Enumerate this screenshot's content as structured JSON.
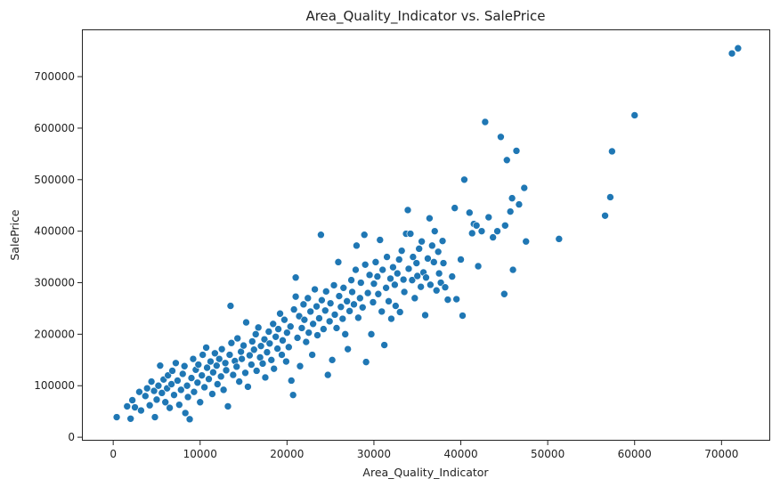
{
  "chart_data": {
    "type": "scatter",
    "title": "Area_Quality_Indicator vs. SalePrice",
    "xlabel": "Area_Quality_Indicator",
    "ylabel": "SalePrice",
    "xlim": [
      -3500,
      75500
    ],
    "ylim": [
      -5000,
      790000
    ],
    "xticks": [
      0,
      10000,
      20000,
      30000,
      40000,
      50000,
      60000,
      70000
    ],
    "yticks": [
      0,
      100000,
      200000,
      300000,
      400000,
      500000,
      600000,
      700000
    ],
    "grid": false,
    "legend": "none",
    "marker_color": "#1f77b4",
    "series": [
      {
        "points": [
          [
            400,
            39000
          ],
          [
            1600,
            60000
          ],
          [
            2000,
            36000
          ],
          [
            2200,
            72000
          ],
          [
            2500,
            58000
          ],
          [
            3000,
            88000
          ],
          [
            3200,
            52000
          ],
          [
            3700,
            80000
          ],
          [
            3900,
            95000
          ],
          [
            4200,
            62000
          ],
          [
            4400,
            108000
          ],
          [
            4700,
            90000
          ],
          [
            4800,
            39000
          ],
          [
            5000,
            73000
          ],
          [
            5200,
            100000
          ],
          [
            5400,
            139000
          ],
          [
            5600,
            86000
          ],
          [
            5800,
            112000
          ],
          [
            6000,
            68000
          ],
          [
            6200,
            95000
          ],
          [
            6300,
            120000
          ],
          [
            6500,
            57000
          ],
          [
            6700,
            103000
          ],
          [
            6800,
            129000
          ],
          [
            7000,
            82000
          ],
          [
            7200,
            144000
          ],
          [
            7400,
            110000
          ],
          [
            7600,
            63000
          ],
          [
            7800,
            92000
          ],
          [
            8000,
            123000
          ],
          [
            8200,
            138000
          ],
          [
            8300,
            47000
          ],
          [
            8500,
            100000
          ],
          [
            8600,
            78000
          ],
          [
            8800,
            35000
          ],
          [
            9000,
            115000
          ],
          [
            9200,
            152000
          ],
          [
            9300,
            88000
          ],
          [
            9500,
            131000
          ],
          [
            9700,
            106000
          ],
          [
            9800,
            141000
          ],
          [
            10000,
            68000
          ],
          [
            10200,
            120000
          ],
          [
            10300,
            160000
          ],
          [
            10500,
            97000
          ],
          [
            10700,
            174000
          ],
          [
            10800,
            135000
          ],
          [
            11000,
            113000
          ],
          [
            11200,
            147000
          ],
          [
            11400,
            84000
          ],
          [
            11500,
            126000
          ],
          [
            11700,
            163000
          ],
          [
            11900,
            139000
          ],
          [
            12000,
            103000
          ],
          [
            12200,
            152000
          ],
          [
            12400,
            118000
          ],
          [
            12500,
            171000
          ],
          [
            12700,
            92000
          ],
          [
            12900,
            144000
          ],
          [
            13000,
            130000
          ],
          [
            13200,
            60000
          ],
          [
            13400,
            160000
          ],
          [
            13500,
            255000
          ],
          [
            13600,
            183000
          ],
          [
            13800,
            121000
          ],
          [
            14000,
            148000
          ],
          [
            14200,
            137000
          ],
          [
            14300,
            192000
          ],
          [
            14500,
            108000
          ],
          [
            14700,
            166000
          ],
          [
            14800,
            152000
          ],
          [
            15000,
            178000
          ],
          [
            15200,
            125000
          ],
          [
            15300,
            223000
          ],
          [
            15500,
            98000
          ],
          [
            15700,
            159000
          ],
          [
            15900,
            141000
          ],
          [
            16000,
            186000
          ],
          [
            16200,
            170000
          ],
          [
            16400,
            200000
          ],
          [
            16500,
            129000
          ],
          [
            16700,
            213000
          ],
          [
            16900,
            155000
          ],
          [
            17000,
            177000
          ],
          [
            17200,
            143000
          ],
          [
            17400,
            190000
          ],
          [
            17500,
            116000
          ],
          [
            17700,
            165000
          ],
          [
            17900,
            205000
          ],
          [
            18000,
            182000
          ],
          [
            18200,
            150000
          ],
          [
            18400,
            220000
          ],
          [
            18500,
            133000
          ],
          [
            18700,
            195000
          ],
          [
            18900,
            172000
          ],
          [
            19000,
            210000
          ],
          [
            19200,
            240000
          ],
          [
            19400,
            160000
          ],
          [
            19500,
            188000
          ],
          [
            19700,
            228000
          ],
          [
            19900,
            147000
          ],
          [
            20000,
            203000
          ],
          [
            20200,
            175000
          ],
          [
            20400,
            215000
          ],
          [
            20500,
            110000
          ],
          [
            20700,
            82000
          ],
          [
            20800,
            248000
          ],
          [
            21000,
            310000
          ],
          [
            21000,
            273000
          ],
          [
            21200,
            193000
          ],
          [
            21400,
            235000
          ],
          [
            21500,
            138000
          ],
          [
            21700,
            212000
          ],
          [
            21900,
            258000
          ],
          [
            22000,
            228000
          ],
          [
            22200,
            185000
          ],
          [
            22400,
            270000
          ],
          [
            22500,
            203000
          ],
          [
            22700,
            244000
          ],
          [
            22900,
            160000
          ],
          [
            23000,
            220000
          ],
          [
            23200,
            287000
          ],
          [
            23400,
            254000
          ],
          [
            23500,
            198000
          ],
          [
            23700,
            231000
          ],
          [
            23900,
            393000
          ],
          [
            24000,
            266000
          ],
          [
            24200,
            210000
          ],
          [
            24400,
            246000
          ],
          [
            24500,
            283000
          ],
          [
            24700,
            121000
          ],
          [
            24900,
            225000
          ],
          [
            25000,
            260000
          ],
          [
            25200,
            150000
          ],
          [
            25400,
            295000
          ],
          [
            25500,
            238000
          ],
          [
            25700,
            212000
          ],
          [
            25900,
            340000
          ],
          [
            26000,
            274000
          ],
          [
            26200,
            253000
          ],
          [
            26400,
            230000
          ],
          [
            26500,
            290000
          ],
          [
            26700,
            200000
          ],
          [
            26900,
            264000
          ],
          [
            27000,
            171000
          ],
          [
            27200,
            245000
          ],
          [
            27400,
            305000
          ],
          [
            27500,
            282000
          ],
          [
            27700,
            258000
          ],
          [
            27900,
            325000
          ],
          [
            28000,
            372000
          ],
          [
            28200,
            232000
          ],
          [
            28400,
            270000
          ],
          [
            28500,
            300000
          ],
          [
            28700,
            252000
          ],
          [
            28900,
            393000
          ],
          [
            29000,
            335000
          ],
          [
            29100,
            146000
          ],
          [
            29300,
            280000
          ],
          [
            29500,
            315000
          ],
          [
            29700,
            200000
          ],
          [
            29900,
            262000
          ],
          [
            30000,
            298000
          ],
          [
            30200,
            340000
          ],
          [
            30400,
            312000
          ],
          [
            30500,
            278000
          ],
          [
            30700,
            383000
          ],
          [
            30900,
            244000
          ],
          [
            31000,
            325000
          ],
          [
            31200,
            179000
          ],
          [
            31400,
            290000
          ],
          [
            31500,
            350000
          ],
          [
            31700,
            264000
          ],
          [
            31900,
            308000
          ],
          [
            32000,
            230000
          ],
          [
            32200,
            330000
          ],
          [
            32400,
            296000
          ],
          [
            32500,
            255000
          ],
          [
            32700,
            318000
          ],
          [
            32900,
            345000
          ],
          [
            33000,
            243000
          ],
          [
            33200,
            362000
          ],
          [
            33400,
            306000
          ],
          [
            33500,
            282000
          ],
          [
            33700,
            395000
          ],
          [
            33900,
            441000
          ],
          [
            34000,
            327000
          ],
          [
            34200,
            395000
          ],
          [
            34400,
            305000
          ],
          [
            34500,
            350000
          ],
          [
            34700,
            270000
          ],
          [
            34900,
            338000
          ],
          [
            35000,
            313000
          ],
          [
            35200,
            366000
          ],
          [
            35400,
            292000
          ],
          [
            35500,
            380000
          ],
          [
            35700,
            320000
          ],
          [
            35900,
            237000
          ],
          [
            36000,
            310000
          ],
          [
            36200,
            347000
          ],
          [
            36400,
            425000
          ],
          [
            36500,
            296000
          ],
          [
            36700,
            372000
          ],
          [
            36900,
            340000
          ],
          [
            37000,
            400000
          ],
          [
            37200,
            285000
          ],
          [
            37400,
            360000
          ],
          [
            37500,
            318000
          ],
          [
            37700,
            300000
          ],
          [
            37900,
            381000
          ],
          [
            38000,
            338000
          ],
          [
            38200,
            291000
          ],
          [
            38500,
            267000
          ],
          [
            39000,
            312000
          ],
          [
            39300,
            445000
          ],
          [
            39500,
            268000
          ],
          [
            40000,
            345000
          ],
          [
            40200,
            236000
          ],
          [
            40400,
            500000
          ],
          [
            41000,
            436000
          ],
          [
            41300,
            396000
          ],
          [
            41500,
            414000
          ],
          [
            41800,
            411000
          ],
          [
            42000,
            332000
          ],
          [
            42400,
            400000
          ],
          [
            42800,
            612000
          ],
          [
            43200,
            427000
          ],
          [
            43700,
            388000
          ],
          [
            44200,
            400000
          ],
          [
            44600,
            583000
          ],
          [
            45000,
            278000
          ],
          [
            45100,
            411000
          ],
          [
            45300,
            538000
          ],
          [
            45700,
            438000
          ],
          [
            45900,
            464000
          ],
          [
            46000,
            325000
          ],
          [
            46400,
            556000
          ],
          [
            46700,
            452000
          ],
          [
            47300,
            484000
          ],
          [
            47500,
            380000
          ],
          [
            51300,
            385000
          ],
          [
            56600,
            430000
          ],
          [
            57200,
            466000
          ],
          [
            57400,
            555000
          ],
          [
            60000,
            625000
          ],
          [
            71200,
            745000
          ],
          [
            71900,
            755000
          ]
        ]
      }
    ]
  }
}
